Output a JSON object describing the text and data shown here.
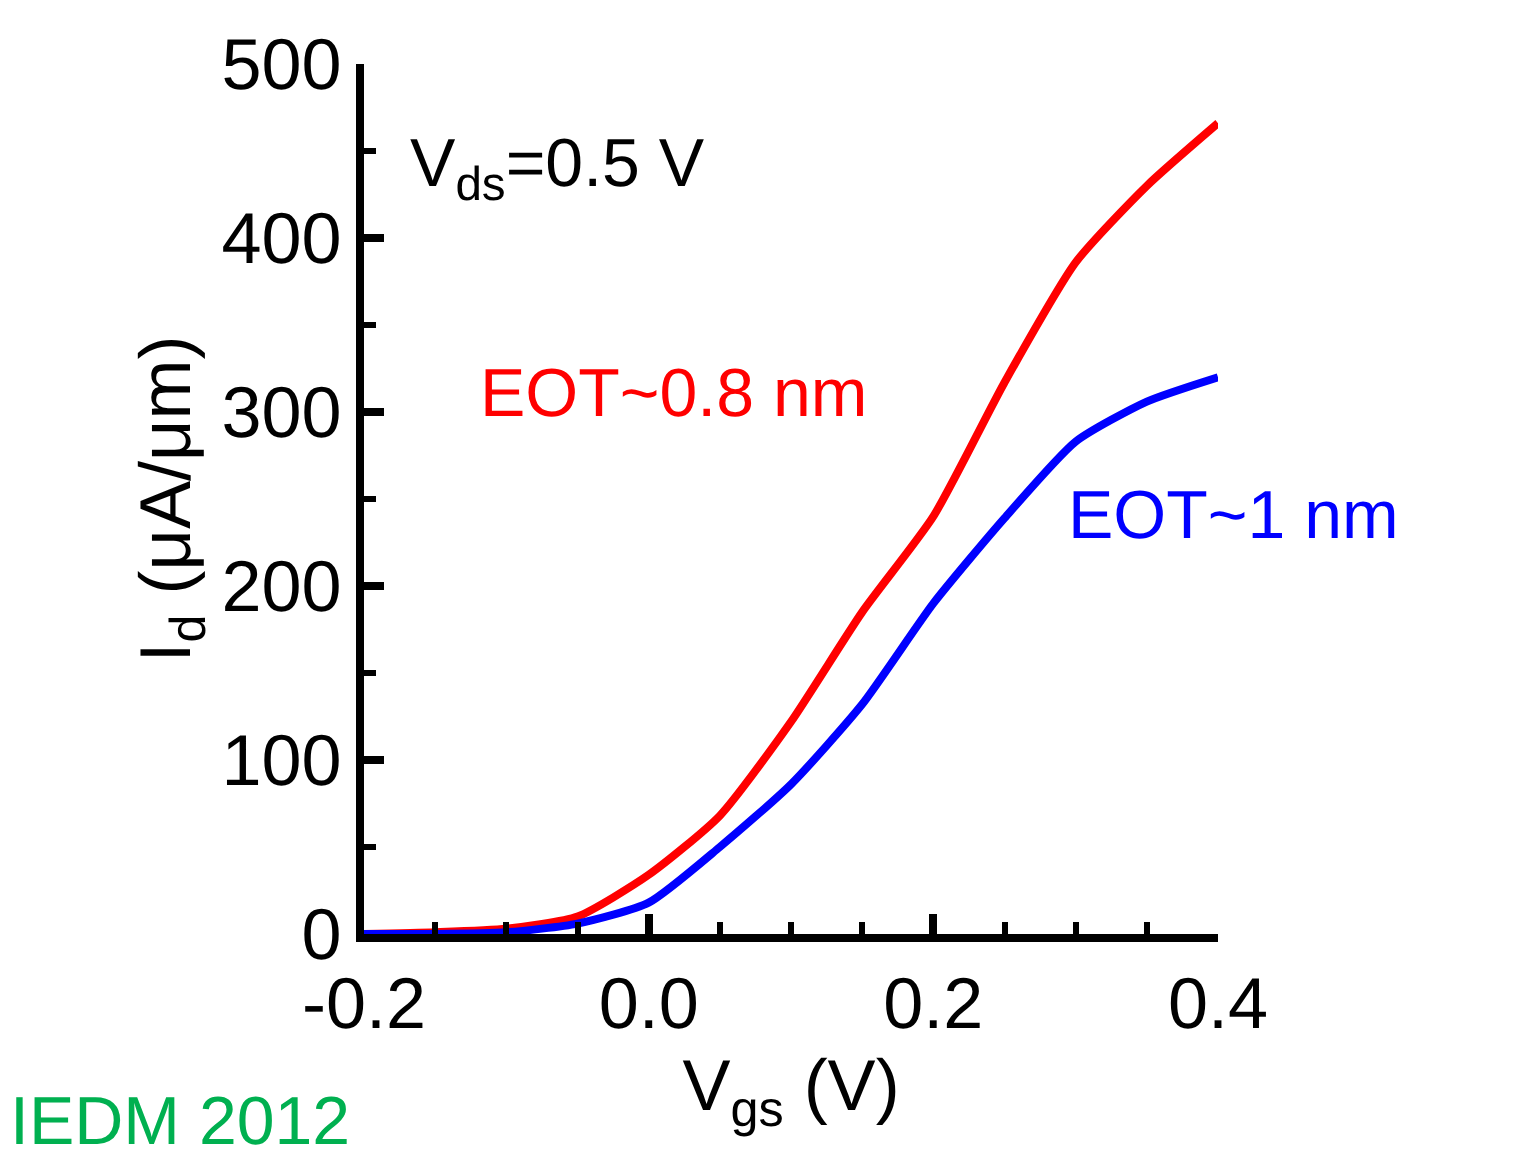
{
  "chart_data": {
    "type": "line",
    "xlabel": "V$_{gs}$ (V)",
    "ylabel": "I$_{d}$ (μA/μm)",
    "x": [
      -0.2,
      -0.15,
      -0.1,
      -0.05,
      0.0,
      0.05,
      0.1,
      0.15,
      0.2,
      0.25,
      0.3,
      0.35,
      0.4
    ],
    "series": [
      {
        "name": "EOT~0.8 nm",
        "color": "#ff0000",
        "values": [
          0,
          1,
          3,
          10,
          34,
          68,
          122,
          185,
          240,
          317,
          386,
          430,
          466
        ]
      },
      {
        "name": "EOT~1 nm",
        "color": "#0000ff",
        "values": [
          0,
          0,
          1,
          6,
          18,
          50,
          86,
          132,
          190,
          239,
          283,
          306,
          320
        ]
      }
    ],
    "xlim": [
      -0.2,
      0.4
    ],
    "xticks": [
      {
        "value": -0.2,
        "label": "-0.2"
      },
      {
        "value": 0.0,
        "label": "0.0"
      },
      {
        "value": 0.2,
        "label": "0.2"
      },
      {
        "value": 0.4,
        "label": "0.4"
      }
    ],
    "ylim": [
      0,
      500
    ],
    "yticks": [
      0,
      100,
      200,
      300,
      400,
      500
    ],
    "annotations": [
      "V$_{ds}$=0.5 V",
      "IEDM 2012"
    ],
    "legend": false,
    "marker": "none",
    "line_style": "solid"
  }
}
